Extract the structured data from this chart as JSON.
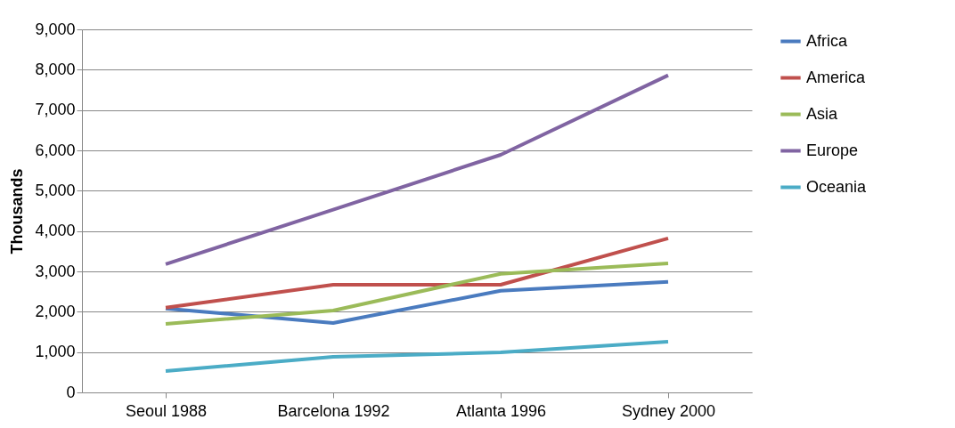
{
  "chart_data": {
    "type": "line",
    "ylabel": "Thousands",
    "categories": [
      "Seoul 1988",
      "Barcelona 1992",
      "Atlanta 1996",
      "Sydney 2000"
    ],
    "series": [
      {
        "name": "Africa",
        "color": "#4a7bbf",
        "values": [
          2080,
          1720,
          2520,
          2740
        ]
      },
      {
        "name": "America",
        "color": "#c0504d",
        "values": [
          2100,
          2670,
          2670,
          3820
        ]
      },
      {
        "name": "Asia",
        "color": "#9bbb59",
        "values": [
          1700,
          2030,
          2940,
          3200
        ]
      },
      {
        "name": "Europe",
        "color": "#8064a2",
        "values": [
          3180,
          4530,
          5890,
          7860
        ]
      },
      {
        "name": "Oceania",
        "color": "#4bacc6",
        "values": [
          530,
          880,
          990,
          1260
        ]
      }
    ],
    "ylim": [
      0,
      9000
    ],
    "yticks": [
      {
        "value": 0,
        "label": "0"
      },
      {
        "value": 1000,
        "label": "1,000"
      },
      {
        "value": 2000,
        "label": "2,000"
      },
      {
        "value": 3000,
        "label": "3,000"
      },
      {
        "value": 4000,
        "label": "4,000"
      },
      {
        "value": 5000,
        "label": "5,000"
      },
      {
        "value": 6000,
        "label": "6,000"
      },
      {
        "value": 7000,
        "label": "7,000"
      },
      {
        "value": 8000,
        "label": "8,000"
      },
      {
        "value": 9000,
        "label": "9,000"
      }
    ],
    "grid": "y",
    "legend": "right",
    "marker": "none",
    "line_style": "solid"
  }
}
